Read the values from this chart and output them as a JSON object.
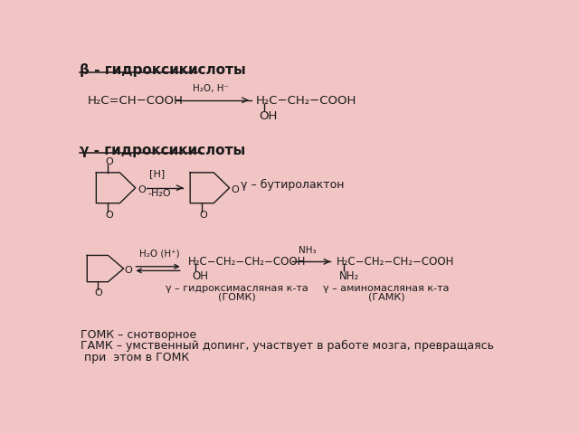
{
  "background_color": "#f2c5c5",
  "title1": "β - гидроксикислоты",
  "title2": "γ - гидроксикислоты",
  "r1_left": "H₂C=CH−COOH",
  "r1_arrow": "H₂O, H⁻",
  "r1_right1": "H₂C−CH₂−COOH",
  "r1_right2": "OH",
  "r2_arrow_top": "[H]",
  "r2_arrow_bot": "-H₂O",
  "r2_label": "γ – бутиролактон",
  "r3_arrow": "H₂O (H⁺)",
  "r3_mid1": "H₂C−CH₂−CH₂−COOH",
  "r3_mid2": "OH",
  "r3_mid_lbl1": "γ – гидроксимасляная к-та",
  "r3_mid_lbl2": "(ГОМК)",
  "r3_arrow2": "NH₃",
  "r3_right1": "H₂C−CH₂−CH₂−COOH",
  "r3_right2": "NH₂",
  "r3_right_lbl1": "γ – аминомасляная к-та",
  "r3_right_lbl2": "(ГАМК)",
  "foot1": "ГОМК – снотворное",
  "foot2": "ГАМК – умственный допинг, участвует в работе мозга, превращаясь",
  "foot3": " при  этом в ГОМК",
  "tc": "#1a1a1a",
  "lc": "#1a1a1a"
}
